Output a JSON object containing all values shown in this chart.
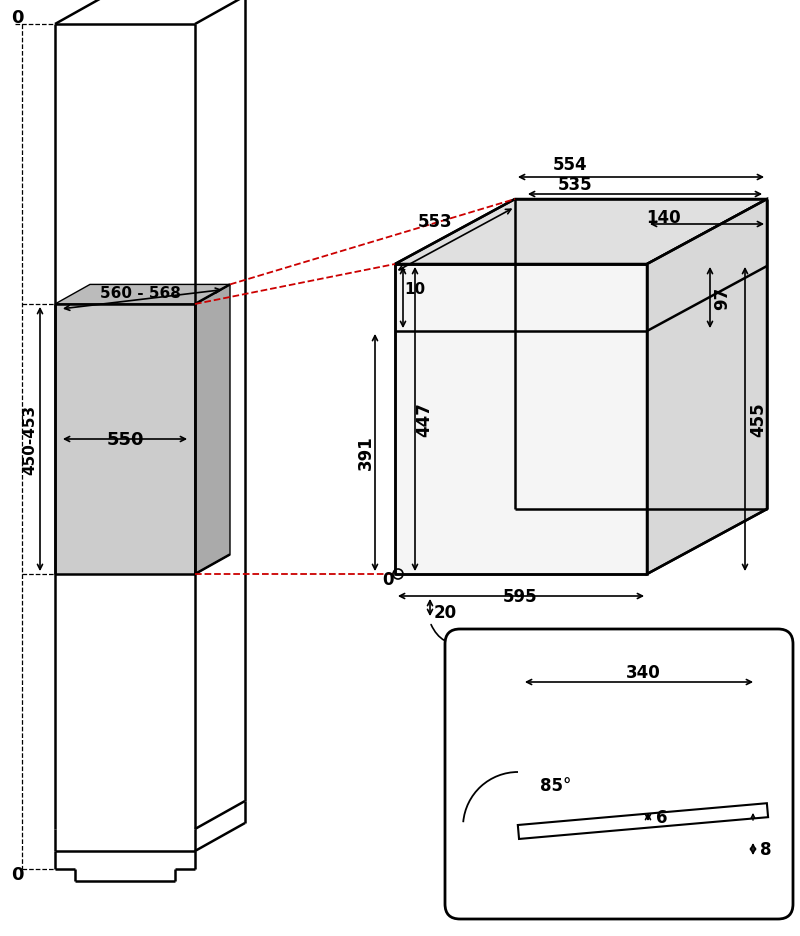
{
  "bg_color": "#ffffff",
  "line_color": "#000000",
  "red_dashed": "#cc0000",
  "figsize": [
    8.0,
    9.37
  ],
  "dpi": 100,
  "lw_main": 1.8,
  "lw_dim": 1.2,
  "lw_dash": 0.9,
  "fs_dim": 12,
  "fs_small": 11
}
